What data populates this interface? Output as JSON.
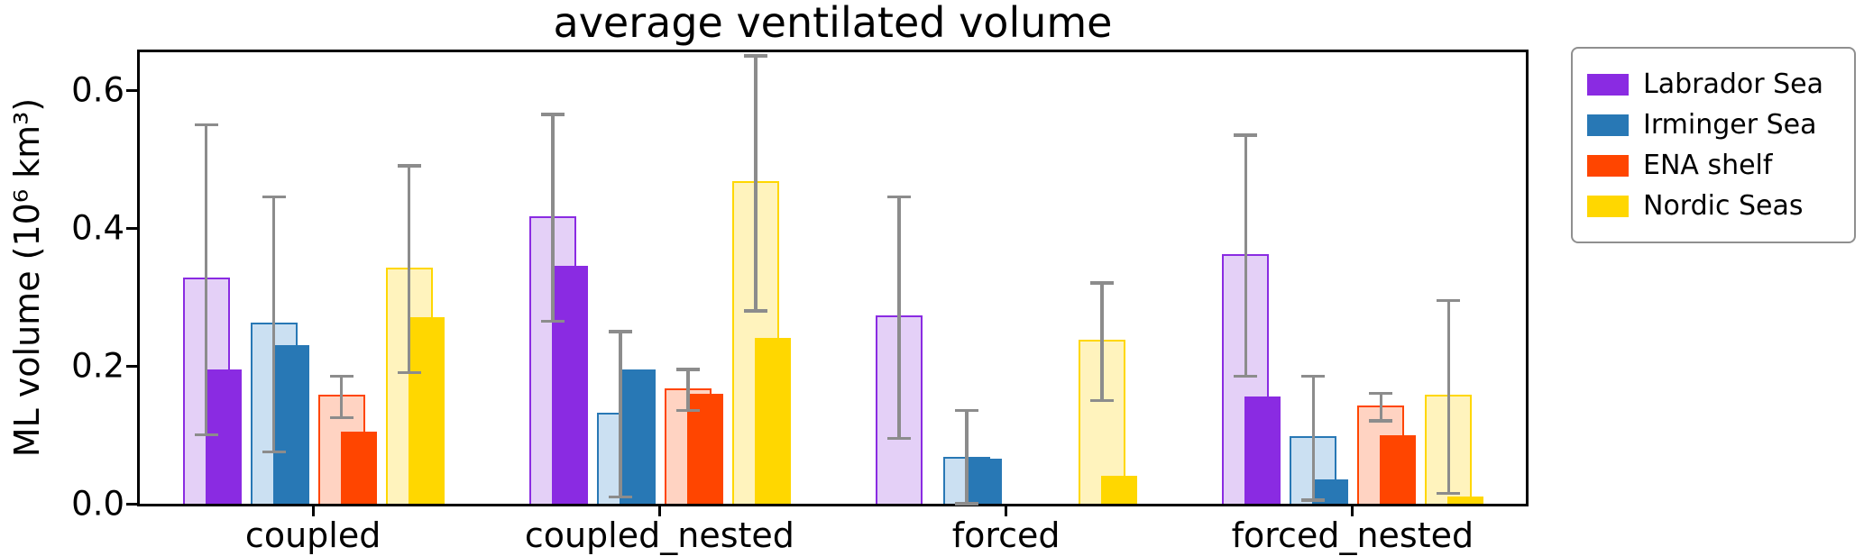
{
  "chart_data": {
    "type": "bar",
    "title": "average ventilated volume",
    "ylabel": "ML volume (10⁶ km³)",
    "xlabel": "",
    "categories": [
      "coupled",
      "coupled_nested",
      "forced",
      "forced_nested"
    ],
    "yticks": [
      0.0,
      0.2,
      0.4,
      0.6
    ],
    "ytick_labels": [
      "0.0",
      "0.2",
      "0.4",
      "0.6"
    ],
    "ymax": 0.655,
    "grid": false,
    "legend_position": "outside upper right",
    "error_bar_color": "#8c8c8c",
    "series": [
      {
        "name": "Labrador Sea",
        "color": "#8a2be2",
        "light_color": "#e4d0f7",
        "mean": [
          0.325,
          0.415,
          0.27,
          0.36
        ],
        "std": [
          0.225,
          0.15,
          0.175,
          0.175
        ],
        "solid": [
          0.195,
          0.345,
          0.0,
          0.155
        ]
      },
      {
        "name": "Irminger Sea",
        "color": "#2878b5",
        "light_color": "#cbe0f2",
        "mean": [
          0.26,
          0.13,
          0.065,
          0.095
        ],
        "std": [
          0.185,
          0.12,
          0.07,
          0.09
        ],
        "solid": [
          0.23,
          0.195,
          0.065,
          0.035
        ]
      },
      {
        "name": "ENA shelf",
        "color": "#ff4500",
        "light_color": "#ffd3c2",
        "mean": [
          0.155,
          0.165,
          0.0,
          0.14
        ],
        "std": [
          0.03,
          0.03,
          0.0,
          0.02
        ],
        "solid": [
          0.105,
          0.16,
          0.0,
          0.1
        ]
      },
      {
        "name": "Nordic Seas",
        "color": "#ffd700",
        "light_color": "#fff3bd",
        "mean": [
          0.34,
          0.465,
          0.235,
          0.155
        ],
        "std": [
          0.15,
          0.185,
          0.085,
          0.14
        ],
        "solid": [
          0.27,
          0.24,
          0.04,
          0.01
        ]
      }
    ]
  }
}
